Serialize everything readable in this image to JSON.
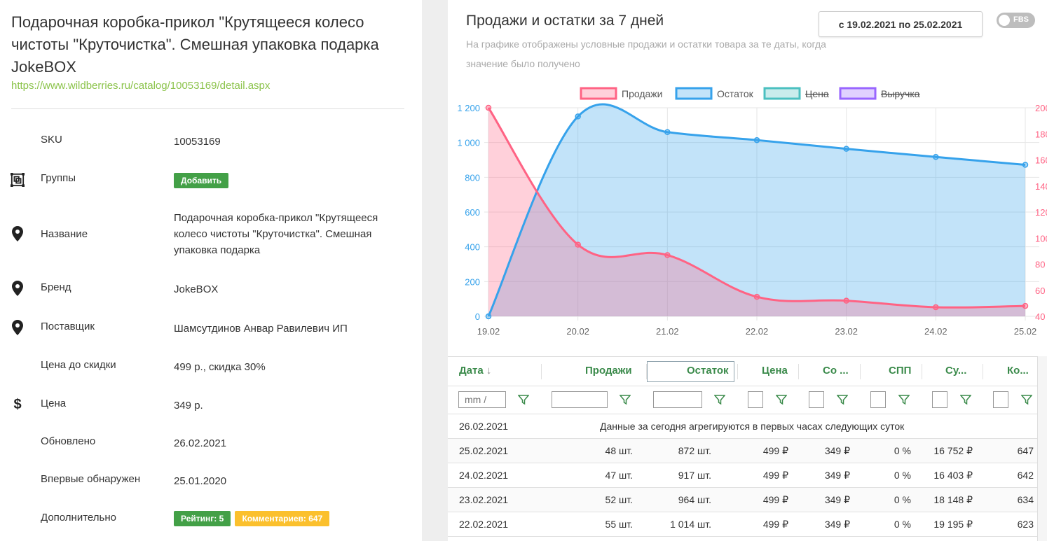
{
  "product": {
    "title": "Подарочная коробка-прикол \"Крутящееся колесо чистоты \"Круточистка\". Смешная упаковка подарка JokeBOX",
    "url": "https://www.wildberries.ru/catalog/10053169/detail.aspx"
  },
  "details": {
    "sku_label": "SKU",
    "sku_value": "10053169",
    "groups_label": "Группы",
    "groups_button": "Добавить",
    "name_label": "Название",
    "name_value": "Подарочная коробка-прикол \"Крутящееся колесо чистоты \"Круточистка\". Смешная упаковка подарка",
    "brand_label": "Бренд",
    "brand_value": "JokeBOX",
    "supplier_label": "Поставщик",
    "supplier_value": "Шамсутдинов Анвар Равилевич ИП",
    "price_before_label": "Цена до скидки",
    "price_before_value": "499 р., скидка 30%",
    "price_label": "Цена",
    "price_value": "349 р.",
    "updated_label": "Обновлено",
    "updated_value": "26.02.2021",
    "first_seen_label": "Впервые обнаружен",
    "first_seen_value": "25.01.2020",
    "extra_label": "Дополнительно",
    "rating_badge": "Рейтинг: 5",
    "comments_badge": "Комментариев: 647"
  },
  "panel": {
    "title": "Продажи и остатки за 7 дней",
    "subtitle": "На графике отображены условные продажи и остатки товара за те даты, когда значение было получено",
    "date_range": "с 19.02.2021 по 25.02.2021",
    "fbs_label": "FBS"
  },
  "colors": {
    "sales": "#ff6384",
    "stock": "#36a2eb",
    "price": "#4bc0c0",
    "revenue": "#9966ff",
    "header_green": "#3a8a4a"
  },
  "chart_data": {
    "type": "line",
    "x": [
      "19.02",
      "20.02",
      "21.02",
      "22.02",
      "23.02",
      "24.02",
      "25.02"
    ],
    "series": [
      {
        "name": "Продажи",
        "axis": "right",
        "values": [
          200,
          95,
          87,
          55,
          52,
          47,
          48
        ],
        "fill": true,
        "hidden": false
      },
      {
        "name": "Остаток",
        "axis": "left",
        "values": [
          0,
          1150,
          1060,
          1014,
          964,
          917,
          872
        ],
        "fill": true,
        "hidden": false
      },
      {
        "name": "Цена",
        "hidden": true
      },
      {
        "name": "Выручка",
        "hidden": true
      }
    ],
    "y_left": {
      "min": 0,
      "max": 1200,
      "ticks": [
        "0",
        "200",
        "400",
        "600",
        "800",
        "1 000",
        "1 200"
      ]
    },
    "y_right": {
      "min": 40,
      "max": 200,
      "ticks": [
        "40",
        "60",
        "80",
        "100",
        "120",
        "140",
        "160",
        "180",
        "200"
      ]
    },
    "grid": true,
    "legend": "top"
  },
  "table": {
    "headers": [
      "Дата",
      "Продажи",
      "Остаток",
      "Цена",
      "Со ...",
      "СПП",
      "Су...",
      "Ко..."
    ],
    "date_placeholder": "mm /",
    "today_row": {
      "date": "26.02.2021",
      "note": "Данные за сегодня агрегируются в первых часах следующих суток"
    },
    "rows": [
      [
        "25.02.2021",
        "48 шт.",
        "872 шт.",
        "499 ₽",
        "349 ₽",
        "0 %",
        "16 752 ₽",
        "647"
      ],
      [
        "24.02.2021",
        "47 шт.",
        "917 шт.",
        "499 ₽",
        "349 ₽",
        "0 %",
        "16 403 ₽",
        "642"
      ],
      [
        "23.02.2021",
        "52 шт.",
        "964 шт.",
        "499 ₽",
        "349 ₽",
        "0 %",
        "18 148 ₽",
        "634"
      ],
      [
        "22.02.2021",
        "55 шт.",
        "1 014 шт.",
        "499 ₽",
        "349 ₽",
        "0 %",
        "19 195 ₽",
        "623"
      ]
    ]
  }
}
